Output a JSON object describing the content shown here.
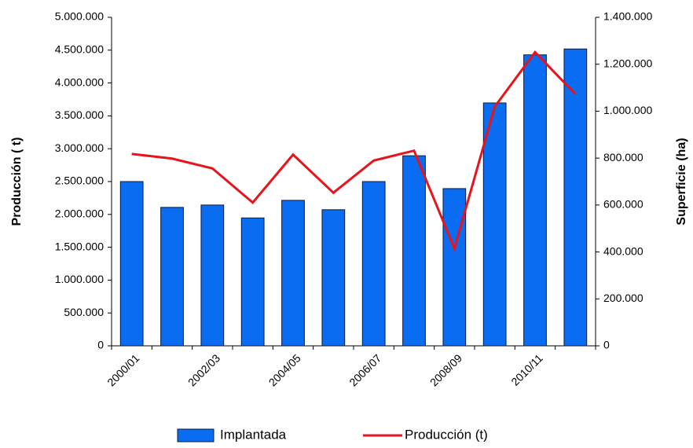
{
  "chart_data": {
    "type": "bar_line",
    "ylabel": "Producción ( t)",
    "y2label": "Superficie (ha)",
    "categories": [
      "2000/01",
      null,
      "2002/03",
      null,
      "2004/05",
      null,
      "2006/07",
      null,
      "2008/09",
      null,
      "2010/11",
      null
    ],
    "series": [
      {
        "name": "Implantada",
        "type": "bar",
        "axis": "y2",
        "color": "#0a6cf0",
        "values": [
          700000,
          590000,
          600000,
          545000,
          620000,
          580000,
          700000,
          810000,
          670000,
          1035000,
          1240000,
          1265000
        ]
      },
      {
        "name": "Producción (t)",
        "type": "line",
        "axis": "y",
        "color": "#e8141c",
        "values": [
          2920000,
          2850000,
          2700000,
          2180000,
          2910000,
          2330000,
          2820000,
          2970000,
          1480000,
          3640000,
          4470000,
          3830000
        ]
      }
    ],
    "ylim": [
      0,
      5000000
    ],
    "yticks": [
      0,
      {
        "value": 500000,
        "label": "500.000"
      },
      {
        "value": 1000000,
        "label": "1.000.000"
      },
      {
        "value": 1500000,
        "label": "1.500.000"
      },
      {
        "value": 2000000,
        "label": "2.000.000"
      },
      {
        "value": 2500000,
        "label": "2.500.000"
      },
      {
        "value": 3000000,
        "label": "3.000.000"
      },
      {
        "value": 3500000,
        "label": "3.500.000"
      },
      {
        "value": 4000000,
        "label": "4.000.000"
      },
      {
        "value": 4500000,
        "label": "4.500.000"
      },
      {
        "value": 5000000,
        "label": "5.000.000"
      }
    ],
    "y2lim": [
      0,
      1400000
    ],
    "y2ticks": [
      0,
      {
        "value": 200000,
        "label": "200.000"
      },
      {
        "value": 400000,
        "label": "400.000"
      },
      {
        "value": 600000,
        "label": "600.000"
      },
      {
        "value": 800000,
        "label": "800.000"
      },
      {
        "value": 1000000,
        "label": "1.000.000"
      },
      {
        "value": 1200000,
        "label": "1.200.000"
      },
      {
        "value": 1400000,
        "label": "1.400.000"
      }
    ],
    "legend": "bottom"
  }
}
